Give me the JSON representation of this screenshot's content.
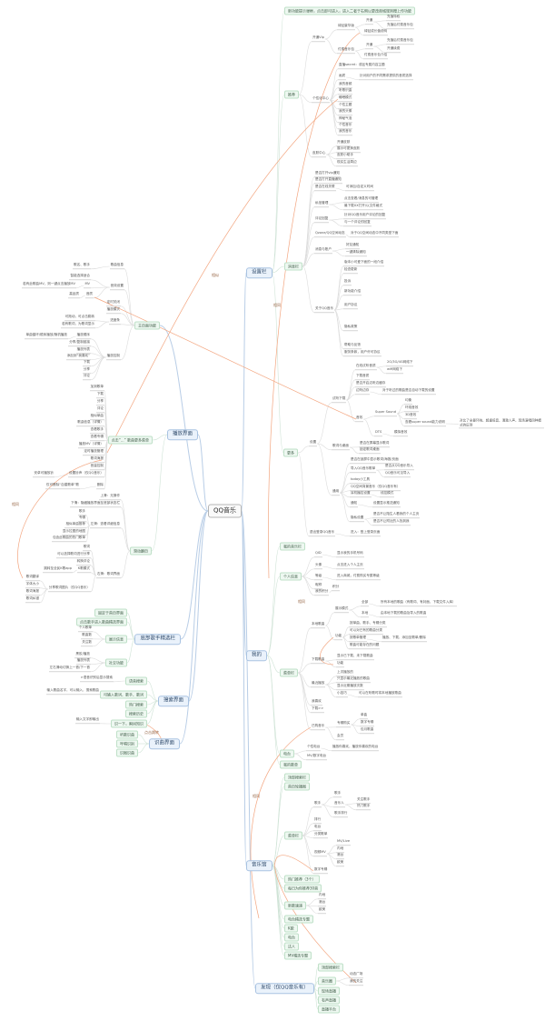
{
  "colors": {
    "branch_line": "#b8cde6",
    "sub_line": "#cfe3d6",
    "leaf_line": "#dcdcdc",
    "cross_link": "#f3a57f"
  },
  "nodes": {
    "root": "QQ音乐",
    "settings": "设置栏",
    "mine": "我的",
    "hall": "音乐馆",
    "discover": "发现（仅QQ音乐有）",
    "play": "播放界面",
    "main": "主页面功能",
    "singer": "底部歌手精选栏",
    "search": "搜索界面",
    "recog": "识曲界面",
    "s_tip": "新功能提示弹框，点击即可进入，进入二者于右侧以更改商城规则赠上传功能",
    "s_rec": "推荐",
    "s_msg": "消息栏",
    "s_more": "更多",
    "r_vip": "开通Vip",
    "r_pers": "个性化中心",
    "r_skin": "皮肤中心",
    "v_green": "绿钻豪华版",
    "v_pay": "付费音乐包",
    "v_open1": "开通",
    "v_open1a": "充值特权",
    "v_open1b": "充值后付费音乐包",
    "v_grow": "绿钻成长值说明",
    "v_open2": "开通",
    "v_open2a": "充值后付费音乐包",
    "v_open2b": "开通续费",
    "v_pay2": "付费音乐包介绍",
    "p_secret": "直播secret：或钻专属内容主题",
    "p_q": "画质",
    "p_q1": "针对用户的不同需求提供的音质选择",
    "p_1": "我的音频",
    "p_2": "听歌识曲",
    "p_3": "睡眠模式",
    "p_4": "个性主题",
    "p_5": "我的头像",
    "p_6": "神秘气泡",
    "p_7": "个性音乐",
    "p_8": "我的音乐",
    "k_1": "开通皮肤",
    "k_2": "展示可更换皮肤",
    "k_3": "皮肤小助手",
    "k_4": "现实生活周边",
    "g_vip": "是否打开vip通知",
    "g_live": "是否打开直播通知",
    "g_time": "是否在线关联",
    "g_time1": "可添加/自定义时间",
    "g_pm": "私信管理",
    "g_pm1": "点击查看/消息的可管理",
    "g_pm2": "最下载XX打开/以文件格式",
    "g_cm": "评论回复",
    "g_cm1": "针对QQ音乐用户评论的回复",
    "g_cm2": "与一个评论的回复",
    "g_qz": "Qzone/QQ空间动态",
    "g_qz1": "对于QQ空间动态中不同类型下面",
    "g_acc": "消息与账户",
    "g_acc1": "好友通知",
    "g_acc2": "一键清除通知",
    "g_about": "关于QQ音乐",
    "a_1": "版本小可爱下面的一段介绍",
    "a_2": "检查更新",
    "a_3": "投诉",
    "a_4": "新功能介绍",
    "a_5": "用户协议",
    "a_6": "隐私政策",
    "a_7": "帮助与反馈",
    "a_8": "服务条款，用户许可协议",
    "m_set": "设置",
    "m_exit": "退出登录QQ音乐",
    "m_exit1": "进入：登上登录页面",
    "t_dl": "试听下载",
    "t_ly": "歌词与桌面",
    "t_gen": "通用",
    "d_1": "在线试听音质",
    "d_1a": "2G/3G/4G网络下",
    "d_1b": "wifi网络下",
    "d_2": "下载音质",
    "d_3": "是否开启边听边缓存",
    "d_4": "边听边存",
    "d_4a": "对于听过的歌曲是否自动下载的设置",
    "d_fx": "音效",
    "d_ss": "Super Sound",
    "d_ss1": "均衡",
    "d_ss2": "环绕音效",
    "d_ss3": "3D音效",
    "d_ss4": "查看super sound能力说明",
    "d_ss4a": "对比了全景环绕、超重低音、清澈人声、现场演唱四种模式的区别",
    "d_dts": "DTS",
    "d_dts1": "模拟音效",
    "y_1": "是否在屏幕显示歌词",
    "y_2": "锁定歌词桌面",
    "n_1": "是否在锁屏中显示歌词/海报/页面",
    "n_2": "导入QQ音乐歌单",
    "n_2a": "是否从QQ音乐导入",
    "n_2b": "QQ音乐可见导入",
    "n_3": "today小工具",
    "n_4": "QQ空间背景音乐（仅QQ音乐有）",
    "n_5": "耳机播控设置",
    "n_5a": "线控模式",
    "n_6": "通知",
    "n_6a": "设置显示推送通知",
    "n_7": "隐私设置",
    "n_7a": "是否不让陌生人看我的个人主页",
    "n_7b": "是否不让附近的人找到我",
    "m_top": "我的音乐栏",
    "m_info": "个人信息",
    "i_1": "QID",
    "i_1a": "显示我的手机号码",
    "i_2": "头像",
    "i_2a": "点击进入个人主页",
    "i_3": "等级",
    "i_3a": "进入商城，付费购买专属等级",
    "i_4": "昵称",
    "i_5": "我的积分",
    "i_5a": "积分",
    "m_menu": "菜单栏",
    "u_local": "本地歌曲",
    "u_mode": "展示模式",
    "u_all": "全部",
    "u_all1": "所有本地的歌曲（有歌词、有封面，下载文件入库）",
    "u_loc": "本地",
    "u_loc1": "由本地下载的歌曲及导入的歌曲",
    "u_fn": "功能",
    "u_fn1": "按单曲、歌手、专辑分类",
    "u_fn2": "可以对已有的歌曲分类",
    "u_fn3": "按歌单管理",
    "u_fn3a": "播放、下载、添加至歌单/删除",
    "u_fn4": "歌曲可能存在的问题",
    "u_dl": "下载歌曲",
    "u_dl1": "显示已下载、未下载歌曲",
    "u_dl2": "功能",
    "u_rec": "最近播放",
    "u_rec1": "上次播放的",
    "u_rec2": "只显示最近播放的歌曲",
    "u_rec3": "显示近期播放次数",
    "u_rec4": "小技巧",
    "u_rec4a": "可以在听歌时将本地播放歌曲",
    "u_like": "我喜欢",
    "u_down": "下载>>",
    "u_buy": "已购音乐",
    "u_buy1": "专辑购买",
    "u_buy1a": "单曲",
    "u_buy1b": "数字专辑",
    "u_buy1c": "包月歌曲",
    "u_buy2": "会员",
    "m_radio": "电台",
    "r_pr": "个性电台",
    "r_pr1": "播放你喜欢，播放你喜欢的电台",
    "r_mv": "MV/数字电台",
    "m_list": "我的歌单",
    "h_top": "顶部搜索栏",
    "h_ban": "首页轮播图",
    "h_menu": "菜单栏",
    "h_sg": "歌手",
    "h_sg1": "歌手",
    "h_sg2": "音乐人",
    "h_sg2a": "关注歌手",
    "h_sg2b": "热门歌手",
    "h_sg3": "歌手排行",
    "h_rank": "排行",
    "h_radio": "电台",
    "h_cat": "分类歌单",
    "h_mv": "视频MV",
    "h_mv1": "MV/Live",
    "h_mv2": "内地",
    "h_mv3": "港台",
    "h_mv4": "欧美",
    "h_dig": "数字专辑",
    "h_hot": "热门推荐（3个）",
    "h_daily": "每日为你推荐30首",
    "h_new": "新歌速递",
    "h_new1": "内地",
    "h_new2": "港台",
    "h_new3": "欧美",
    "h_rs": "电台精选专题",
    "h_k": "K歌",
    "h_r2": "电台",
    "h_dr": "达人",
    "h_mvs": "MV精选专题",
    "f_top": "顶部搜索栏",
    "f_circle": "音乐圈",
    "f_c1": "动态广场",
    "f_c2": "我的关注",
    "f_live": "现场直播",
    "f_voice": "有声直播",
    "f_plat": "直播平台",
    "x_info": "歌曲信息",
    "x_info1": "歌名、歌手",
    "x_fx": "音效设置",
    "x_fx1": "智能选择适合",
    "x_fx2": "MV",
    "x_fx2a": "若有此歌曲MV，则一键点击播放MV",
    "x_fx3": "音质",
    "x_fx3a": "高品质",
    "x_timer": "定时关闭",
    "x_mode": "播放模式",
    "x_bar": "进度条",
    "x_bar1": "可拖动，可点击跳转",
    "x_bar2": "若有歌词，为歌词显示",
    "x_ctl": "播放控制",
    "x_c1": "播放顺序",
    "x_c1a": "单曲循环/顺序播放/随机播放",
    "x_c2": "分享/复制链接",
    "x_c3": "播放列表",
    "x_c4": "添加到“我喜欢”",
    "x_c5": "下载",
    "x_c6": "分享",
    "x_c7": "评论",
    "pl_more": "点击“...” 歌曲更多菜单",
    "pm_1": "加到歌单",
    "pm_2": "下载",
    "pm_3": "分享",
    "pm_4": "评论",
    "pm_5": "相似单曲",
    "pm_6": "歌曲信息（详情）",
    "pm_7": "查看歌手",
    "pm_8": "查看专辑",
    "pm_9": "播放MV（详情）",
    "pm_10": "定时播放管理",
    "pm_11": "歌词海报",
    "pm_12": "音量控制",
    "pm_13": "设置铃声（仅QQ音乐）",
    "pm_13a": "安卓可播放铃",
    "pm_14": "删除",
    "pm_14a": "仅可删除“自建歌单”歌",
    "pl_swipe": "滑动翻页",
    "sw_up": "上滑：无操作",
    "sw_down": "下滑：隐藏播放界面至底部状态栏",
    "sw_left": "左滑：查看详细信息",
    "sl_1": "歌手",
    "sl_2": "专辑",
    "sl_3": "相似单曲推荐",
    "sl_4": "显示拉图的地图",
    "sl_5": "包含此歌曲的热门歌单",
    "sw_right": "右滑：歌词界面",
    "sr_1": "歌词",
    "sr_2": "可以选择歌词进行分享",
    "sr_3": "转换评论",
    "sr_4": "K歌模式",
    "sr_4a": "跳转至全民K歌app",
    "sr_5": "分享歌词图片（仅QQ音乐）",
    "bl_1": "歌词翻译",
    "bl_2": "字体大小",
    "bl_3": "歌词海报",
    "bl_4": "歌词纠错",
    "sg_1": "固定于首页界面",
    "sg_2": "点击歌手进入歌曲精选界面",
    "sg_3": "展示信息",
    "sg_3a": "个人歌单",
    "sg_3b": "歌曲数",
    "sg_3c": "关注数",
    "sg_4": "社交功能",
    "sg_4a": "黑胶/播放",
    "sg_4b": "播放列表",
    "sg_4c": "左右滑动切换上一首/下一首",
    "se_1": "语音搜索",
    "se_1a": ">语音识别后显示搜索",
    "se_2": "可输入歌词、歌手、歌词",
    "se_2a": "输入歌曲名字，可以输入，搜索歌曲",
    "se_3": "热门搜索",
    "se_4": "搜索历史",
    "se_5": "识一下，瞬间知识",
    "se_5a": "输入文字即输出",
    "rc_1": "听歌识曲",
    "rc_2": "哼唱识别",
    "rc_3": "识图识曲"
  },
  "cross_links": {
    "l1": "相似",
    "l2": "相同",
    "l3": "相同",
    "l4": "相同",
    "l5": "相同",
    "l6": "点击跳转"
  }
}
